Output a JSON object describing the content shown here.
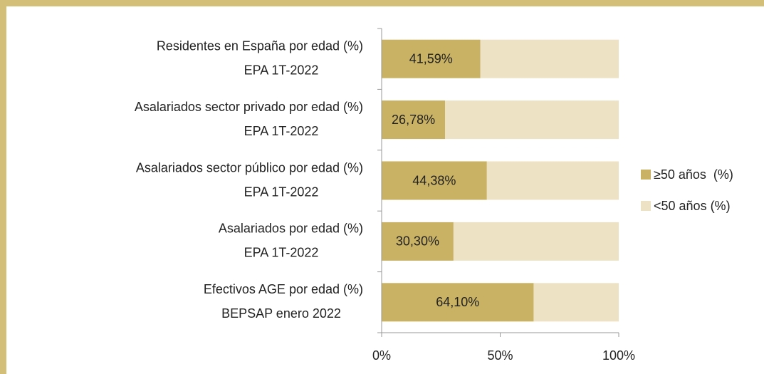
{
  "chart_data": {
    "type": "bar",
    "orientation": "horizontal",
    "stacked": true,
    "categories": [
      [
        "Residentes en España por edad (%)",
        "EPA 1T-2022"
      ],
      [
        "Asalariados sector privado por edad (%)",
        "EPA 1T-2022"
      ],
      [
        "Asalariados sector público por edad (%)",
        "EPA 1T-2022"
      ],
      [
        "Asalariados  por edad (%)",
        "EPA 1T-2022"
      ],
      [
        "Efectivos AGE por edad (%)",
        "BEPSAP enero 2022"
      ]
    ],
    "series": [
      {
        "name": "≥50 años  (%)",
        "color": "#c9b264",
        "values": [
          41.59,
          26.78,
          44.38,
          30.3,
          64.1
        ],
        "value_labels": [
          "41,59%",
          "26,78%",
          "44,38%",
          "30,30%",
          "64,10%"
        ]
      },
      {
        "name": "<50 años (%)",
        "color": "#ede3c4",
        "values": [
          58.41,
          73.22,
          55.62,
          69.7,
          35.9
        ]
      }
    ],
    "xlim": [
      0,
      100
    ],
    "xticks": [
      {
        "value": 0,
        "label": "0%"
      },
      {
        "value": 50,
        "label": "50%"
      },
      {
        "value": 100,
        "label": "100%"
      }
    ],
    "legend": "right"
  }
}
